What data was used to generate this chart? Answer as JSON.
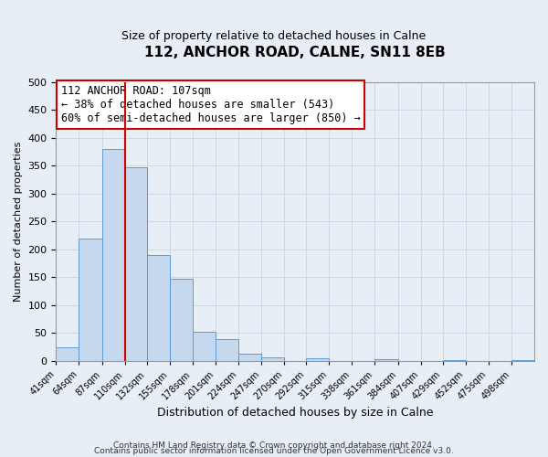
{
  "title": "112, ANCHOR ROAD, CALNE, SN11 8EB",
  "subtitle": "Size of property relative to detached houses in Calne",
  "xlabel": "Distribution of detached houses by size in Calne",
  "ylabel": "Number of detached properties",
  "bin_labels": [
    "41sqm",
    "64sqm",
    "87sqm",
    "110sqm",
    "132sqm",
    "155sqm",
    "178sqm",
    "201sqm",
    "224sqm",
    "247sqm",
    "270sqm",
    "292sqm",
    "315sqm",
    "338sqm",
    "361sqm",
    "384sqm",
    "407sqm",
    "429sqm",
    "452sqm",
    "475sqm",
    "498sqm"
  ],
  "bar_heights": [
    25,
    220,
    380,
    348,
    190,
    147,
    53,
    40,
    13,
    7,
    0,
    5,
    0,
    0,
    3,
    0,
    0,
    2,
    0,
    0,
    2
  ],
  "bar_color": "#c5d8ee",
  "bar_edge_color": "#5b9bd5",
  "grid_color": "#c8d4e3",
  "background_color": "#e8eef5",
  "vline_x": 110,
  "vline_color": "#cc0000",
  "annotation_text": "112 ANCHOR ROAD: 107sqm\n← 38% of detached houses are smaller (543)\n60% of semi-detached houses are larger (850) →",
  "annotation_box_color": "#ffffff",
  "annotation_box_edge": "#cc0000",
  "ylim": [
    0,
    500
  ],
  "bin_edges": [
    41,
    64,
    87,
    110,
    132,
    155,
    178,
    201,
    224,
    247,
    270,
    292,
    315,
    338,
    361,
    384,
    407,
    429,
    452,
    475,
    498
  ],
  "footer_line1": "Contains HM Land Registry data © Crown copyright and database right 2024.",
  "footer_line2": "Contains public sector information licensed under the Open Government Licence v3.0."
}
